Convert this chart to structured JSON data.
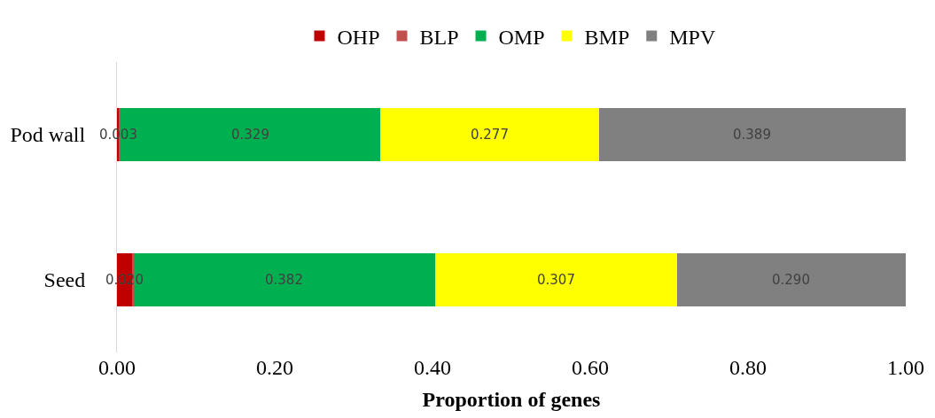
{
  "chart_data": {
    "type": "bar",
    "orientation": "horizontal",
    "stacked": true,
    "xlabel": "Proportion of genes",
    "categories": [
      "Pod wall",
      "Seed"
    ],
    "series": [
      {
        "name": "OHP",
        "color": "#c00000",
        "values": [
          0.003,
          0.02
        ],
        "value_labels": [
          "0.003",
          "0.020"
        ]
      },
      {
        "name": "BLP",
        "color": "#c0504d",
        "values": [
          0.002,
          0.001
        ]
      },
      {
        "name": "OMP",
        "color": "#00b050",
        "values": [
          0.329,
          0.382
        ],
        "value_labels": [
          "0.329",
          "0.382"
        ]
      },
      {
        "name": "BMP",
        "color": "#ffff00",
        "values": [
          0.277,
          0.307
        ],
        "value_labels": [
          "0.277",
          "0.307"
        ]
      },
      {
        "name": "MPV",
        "color": "#808080",
        "values": [
          0.389,
          0.29
        ],
        "value_labels": [
          "0.389",
          "0.290"
        ]
      }
    ],
    "xlim": [
      0,
      1
    ],
    "xticks": [
      {
        "value": 0,
        "label": "0.00"
      },
      {
        "value": 0.2,
        "label": "0.20"
      },
      {
        "value": 0.4,
        "label": "0.40"
      },
      {
        "value": 0.6,
        "label": "0.60"
      },
      {
        "value": 0.8,
        "label": "0.80"
      },
      {
        "value": 1,
        "label": "1.00"
      }
    ],
    "legend": "top",
    "grid": false
  }
}
